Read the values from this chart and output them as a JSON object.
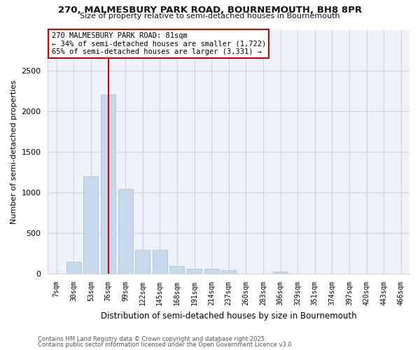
{
  "title_line1": "270, MALMESBURY PARK ROAD, BOURNEMOUTH, BH8 8PR",
  "title_line2": "Size of property relative to semi-detached houses in Bournemouth",
  "xlabel": "Distribution of semi-detached houses by size in Bournemouth",
  "ylabel": "Number of semi-detached properties",
  "footer_line1": "Contains HM Land Registry data © Crown copyright and database right 2025.",
  "footer_line2": "Contains public sector information licensed under the Open Government Licence v3.0.",
  "annotation_title": "270 MALMESBURY PARK ROAD: 81sqm",
  "annotation_line2": "← 34% of semi-detached houses are smaller (1,722)",
  "annotation_line3": "65% of semi-detached houses are larger (3,331) →",
  "bar_color": "#c8d8ec",
  "bar_edge_color": "#a8bcd0",
  "vline_color": "#cc0000",
  "annotation_box_edgecolor": "#cc0000",
  "background_color": "#ffffff",
  "plot_bg_color": "#eef2f8",
  "grid_color": "#c8d4e0",
  "categories": [
    "7sqm",
    "30sqm",
    "53sqm",
    "76sqm",
    "99sqm",
    "122sqm",
    "145sqm",
    "168sqm",
    "191sqm",
    "214sqm",
    "237sqm",
    "260sqm",
    "283sqm",
    "306sqm",
    "329sqm",
    "351sqm",
    "374sqm",
    "397sqm",
    "420sqm",
    "443sqm",
    "466sqm"
  ],
  "values": [
    5,
    150,
    1200,
    2200,
    1040,
    290,
    290,
    100,
    65,
    60,
    45,
    0,
    0,
    30,
    0,
    0,
    0,
    0,
    0,
    0,
    0
  ],
  "ylim": [
    0,
    3000
  ],
  "yticks": [
    0,
    500,
    1000,
    1500,
    2000,
    2500
  ],
  "vline_x_index": 3
}
